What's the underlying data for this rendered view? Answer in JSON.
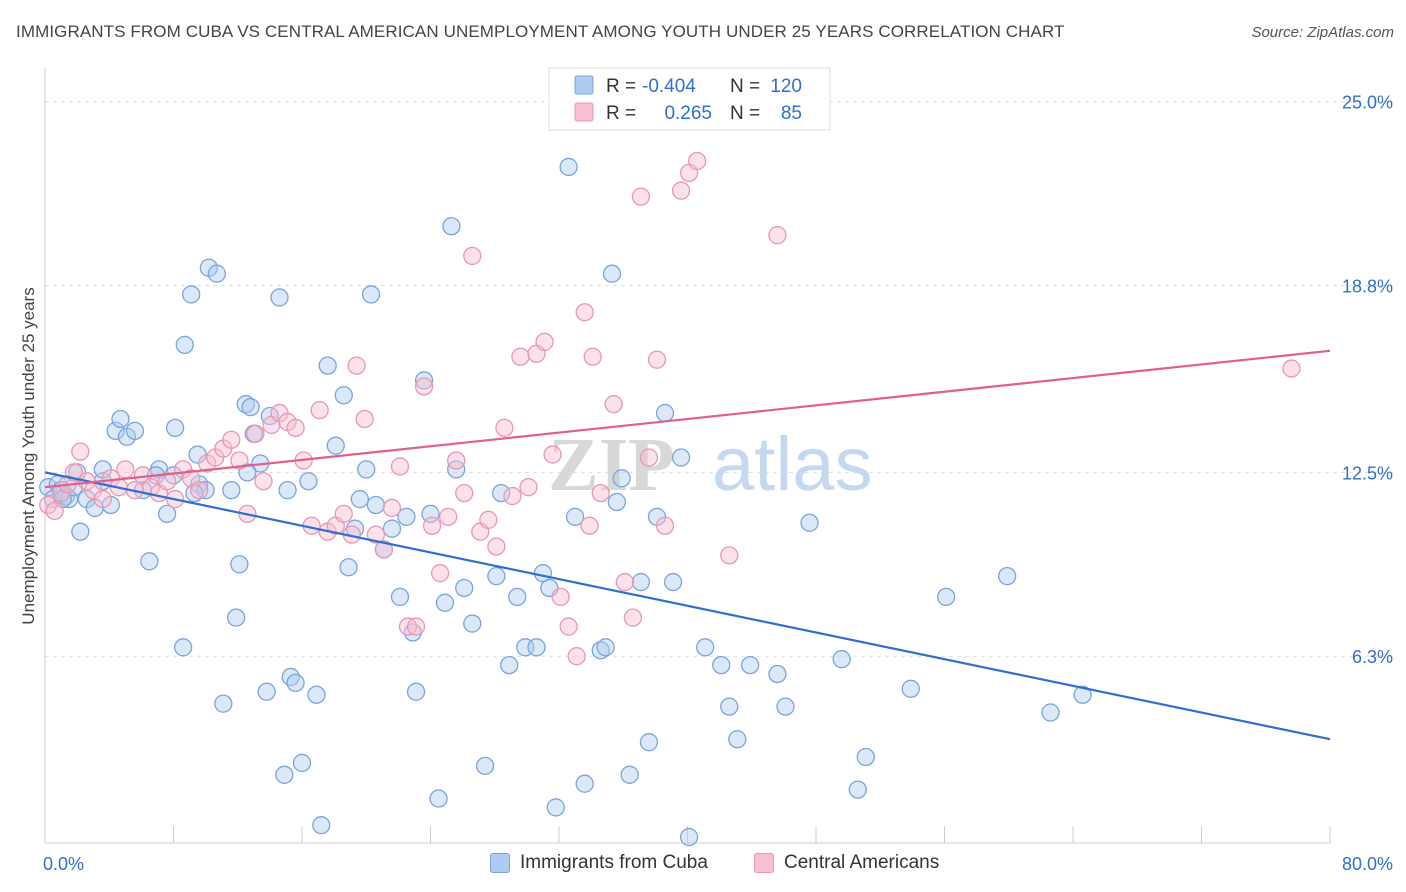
{
  "header": {
    "title": "IMMIGRANTS FROM CUBA VS CENTRAL AMERICAN UNEMPLOYMENT AMONG YOUTH UNDER 25 YEARS CORRELATION CHART",
    "source": "Source: ZipAtlas.com"
  },
  "watermark": {
    "zip": "ZIP",
    "atlas": "atlas"
  },
  "colors": {
    "blue_fill": "#aecbf0",
    "blue_stroke": "#7aa5dc",
    "blue_line": "#2f6fcf",
    "pink_fill": "#f7bfd0",
    "pink_stroke": "#e898b2",
    "pink_line": "#e0608a",
    "value_text": "#2f6fcf",
    "grid": "#dddddd"
  },
  "chart_data": {
    "type": "scatter",
    "ylabel": "Unemployment Among Youth under 25 years",
    "xlim": [
      0,
      80
    ],
    "ylim": [
      0,
      25.8
    ],
    "x_tick_labels": [
      "0.0%",
      "80.0%"
    ],
    "y_ticks": [
      6.3,
      12.5,
      18.8,
      25.0
    ],
    "y_tick_labels": [
      "6.3%",
      "12.5%",
      "18.8%",
      "25.0%"
    ],
    "grid": "horizontal dashed",
    "legend_position": "top-center",
    "legend": [
      {
        "r_label": "R = ",
        "r_value": "-0.404",
        "n_label": "N = ",
        "n_value": "120"
      },
      {
        "r_label": "R = ",
        "r_value": "0.265",
        "n_label": "N = ",
        "n_value": "85"
      }
    ],
    "series": [
      {
        "name": "Immigrants from Cuba",
        "color": "#aecbf0",
        "trend": {
          "x": [
            0,
            80
          ],
          "y": [
            12.5,
            3.5
          ]
        },
        "points": [
          [
            0.2,
            12.0
          ],
          [
            0.5,
            11.6
          ],
          [
            0.8,
            12.1
          ],
          [
            1.0,
            11.9
          ],
          [
            1.3,
            11.7
          ],
          [
            1.5,
            11.6
          ],
          [
            1.8,
            12.0
          ],
          [
            2.0,
            12.5
          ],
          [
            2.2,
            10.5
          ],
          [
            2.6,
            11.6
          ],
          [
            3.1,
            11.3
          ],
          [
            3.6,
            12.2
          ],
          [
            4.1,
            11.4
          ],
          [
            4.4,
            13.9
          ],
          [
            4.7,
            14.3
          ],
          [
            5.1,
            13.7
          ],
          [
            5.6,
            13.9
          ],
          [
            6.1,
            11.9
          ],
          [
            6.5,
            9.5
          ],
          [
            7.1,
            12.6
          ],
          [
            7.6,
            11.1
          ],
          [
            8.0,
            12.4
          ],
          [
            8.1,
            14.0
          ],
          [
            8.6,
            6.6
          ],
          [
            8.7,
            16.8
          ],
          [
            9.1,
            18.5
          ],
          [
            9.5,
            13.1
          ],
          [
            9.6,
            12.1
          ],
          [
            10.0,
            11.9
          ],
          [
            10.2,
            19.4
          ],
          [
            10.7,
            19.2
          ],
          [
            11.1,
            4.7
          ],
          [
            11.6,
            11.9
          ],
          [
            11.9,
            7.6
          ],
          [
            12.1,
            9.4
          ],
          [
            12.5,
            14.8
          ],
          [
            12.8,
            14.7
          ],
          [
            13.0,
            13.8
          ],
          [
            13.4,
            12.8
          ],
          [
            13.8,
            5.1
          ],
          [
            14.0,
            14.4
          ],
          [
            14.6,
            18.4
          ],
          [
            14.9,
            2.3
          ],
          [
            15.3,
            5.6
          ],
          [
            15.6,
            5.4
          ],
          [
            16.0,
            2.7
          ],
          [
            16.4,
            12.2
          ],
          [
            16.9,
            5.0
          ],
          [
            17.2,
            0.6
          ],
          [
            17.6,
            16.1
          ],
          [
            18.1,
            13.4
          ],
          [
            18.6,
            15.1
          ],
          [
            18.9,
            9.3
          ],
          [
            19.3,
            10.6
          ],
          [
            19.6,
            11.6
          ],
          [
            20.0,
            12.6
          ],
          [
            20.3,
            18.5
          ],
          [
            21.1,
            9.9
          ],
          [
            21.6,
            10.6
          ],
          [
            22.1,
            8.3
          ],
          [
            22.5,
            11.0
          ],
          [
            22.9,
            7.1
          ],
          [
            23.1,
            5.1
          ],
          [
            23.6,
            15.6
          ],
          [
            24.0,
            11.1
          ],
          [
            24.5,
            1.5
          ],
          [
            24.9,
            8.1
          ],
          [
            25.3,
            20.8
          ],
          [
            25.6,
            12.6
          ],
          [
            26.1,
            8.6
          ],
          [
            26.6,
            7.4
          ],
          [
            27.4,
            2.6
          ],
          [
            28.1,
            9.0
          ],
          [
            28.4,
            11.8
          ],
          [
            28.9,
            6.0
          ],
          [
            29.4,
            8.3
          ],
          [
            29.9,
            6.6
          ],
          [
            30.6,
            6.6
          ],
          [
            31.0,
            9.1
          ],
          [
            31.4,
            8.6
          ],
          [
            31.8,
            1.2
          ],
          [
            32.6,
            22.8
          ],
          [
            33.0,
            11.0
          ],
          [
            33.6,
            2.0
          ],
          [
            34.6,
            6.5
          ],
          [
            34.9,
            6.6
          ],
          [
            35.3,
            19.2
          ],
          [
            35.6,
            11.5
          ],
          [
            36.4,
            2.3
          ],
          [
            37.1,
            8.8
          ],
          [
            37.6,
            3.4
          ],
          [
            38.1,
            11.0
          ],
          [
            38.6,
            14.5
          ],
          [
            39.1,
            8.8
          ],
          [
            39.6,
            13.0
          ],
          [
            40.1,
            0.2
          ],
          [
            41.1,
            6.6
          ],
          [
            42.1,
            6.0
          ],
          [
            42.6,
            4.6
          ],
          [
            43.1,
            3.5
          ],
          [
            43.9,
            6.0
          ],
          [
            45.6,
            5.7
          ],
          [
            46.1,
            4.6
          ],
          [
            47.6,
            10.8
          ],
          [
            49.6,
            6.2
          ],
          [
            50.6,
            1.8
          ],
          [
            51.1,
            2.9
          ],
          [
            53.9,
            5.2
          ],
          [
            56.1,
            8.3
          ],
          [
            59.9,
            9.0
          ],
          [
            62.6,
            4.4
          ],
          [
            64.6,
            5.0
          ],
          [
            1.1,
            11.6
          ],
          [
            3.6,
            12.6
          ],
          [
            6.9,
            12.4
          ],
          [
            9.3,
            11.8
          ],
          [
            12.6,
            12.5
          ],
          [
            15.1,
            11.9
          ],
          [
            20.6,
            11.4
          ],
          [
            35.9,
            12.3
          ]
        ]
      },
      {
        "name": "Central Americans",
        "color": "#f7bfd0",
        "trend": {
          "x": [
            0,
            80
          ],
          "y": [
            12.0,
            16.6
          ]
        },
        "points": [
          [
            0.2,
            11.4
          ],
          [
            0.6,
            11.2
          ],
          [
            1.0,
            11.8
          ],
          [
            1.4,
            12.1
          ],
          [
            1.8,
            12.5
          ],
          [
            2.2,
            13.2
          ],
          [
            2.6,
            12.2
          ],
          [
            3.0,
            11.9
          ],
          [
            3.6,
            11.6
          ],
          [
            4.1,
            12.3
          ],
          [
            4.6,
            12.0
          ],
          [
            5.0,
            12.6
          ],
          [
            5.6,
            11.9
          ],
          [
            6.1,
            12.4
          ],
          [
            6.6,
            12.0
          ],
          [
            7.1,
            11.8
          ],
          [
            7.6,
            12.2
          ],
          [
            8.1,
            11.6
          ],
          [
            8.6,
            12.6
          ],
          [
            9.1,
            12.3
          ],
          [
            9.6,
            11.9
          ],
          [
            10.1,
            12.8
          ],
          [
            10.6,
            13.0
          ],
          [
            11.1,
            13.3
          ],
          [
            11.6,
            13.6
          ],
          [
            12.1,
            12.9
          ],
          [
            12.6,
            11.1
          ],
          [
            13.1,
            13.8
          ],
          [
            13.6,
            12.2
          ],
          [
            14.1,
            14.1
          ],
          [
            14.6,
            14.5
          ],
          [
            15.1,
            14.2
          ],
          [
            15.6,
            14.0
          ],
          [
            16.1,
            12.9
          ],
          [
            16.6,
            10.7
          ],
          [
            17.1,
            14.6
          ],
          [
            17.6,
            10.5
          ],
          [
            18.1,
            10.7
          ],
          [
            18.6,
            11.1
          ],
          [
            19.1,
            10.4
          ],
          [
            19.4,
            16.1
          ],
          [
            19.9,
            14.3
          ],
          [
            20.6,
            10.4
          ],
          [
            21.1,
            9.9
          ],
          [
            21.6,
            11.3
          ],
          [
            22.1,
            12.7
          ],
          [
            22.6,
            7.3
          ],
          [
            23.1,
            7.3
          ],
          [
            23.6,
            15.4
          ],
          [
            24.1,
            10.7
          ],
          [
            24.6,
            9.1
          ],
          [
            25.1,
            11.0
          ],
          [
            25.6,
            12.9
          ],
          [
            26.1,
            11.8
          ],
          [
            26.6,
            19.8
          ],
          [
            27.1,
            10.5
          ],
          [
            27.6,
            10.9
          ],
          [
            28.1,
            10.0
          ],
          [
            28.6,
            14.0
          ],
          [
            29.1,
            11.7
          ],
          [
            29.6,
            16.4
          ],
          [
            30.1,
            12.0
          ],
          [
            30.6,
            16.5
          ],
          [
            31.1,
            16.9
          ],
          [
            31.6,
            13.1
          ],
          [
            32.1,
            8.3
          ],
          [
            32.6,
            7.3
          ],
          [
            33.1,
            6.3
          ],
          [
            33.6,
            17.9
          ],
          [
            33.9,
            10.7
          ],
          [
            34.1,
            16.4
          ],
          [
            34.6,
            11.8
          ],
          [
            35.4,
            14.8
          ],
          [
            36.1,
            8.8
          ],
          [
            36.6,
            7.6
          ],
          [
            37.1,
            21.8
          ],
          [
            37.6,
            13.0
          ],
          [
            38.1,
            16.3
          ],
          [
            38.6,
            10.7
          ],
          [
            39.6,
            22.0
          ],
          [
            40.1,
            22.6
          ],
          [
            40.6,
            23.0
          ],
          [
            42.6,
            9.7
          ],
          [
            45.6,
            20.5
          ],
          [
            77.6,
            16.0
          ]
        ]
      }
    ]
  },
  "bottom_legend": [
    {
      "label": "Immigrants from Cuba"
    },
    {
      "label": "Central Americans"
    }
  ]
}
